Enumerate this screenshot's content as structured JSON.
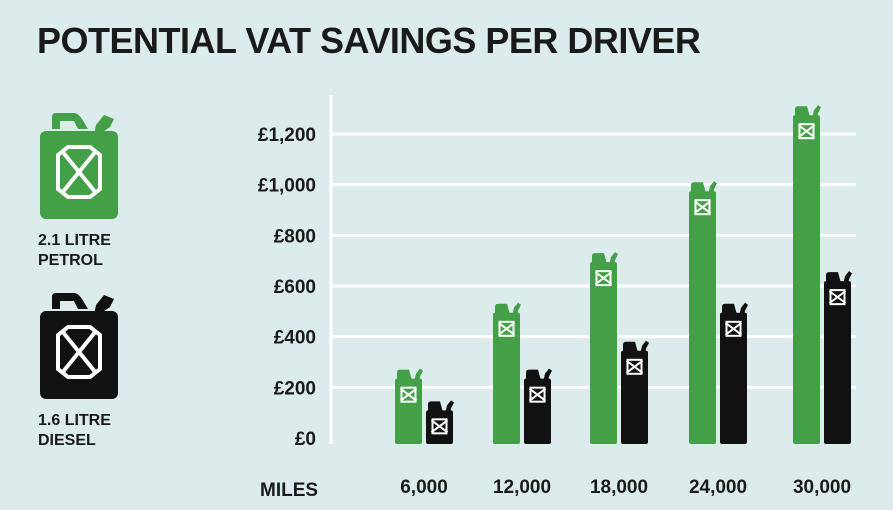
{
  "title": "POTENTIAL VAT SAVINGS PER DRIVER",
  "legend": [
    {
      "label_line1": "2.1 LITRE",
      "label_line2": "PETROL",
      "color": "#43a047",
      "icon": "jerry-can-icon"
    },
    {
      "label_line1": "1.6 LITRE",
      "label_line2": "DIESEL",
      "color": "#111111",
      "icon": "jerry-can-icon"
    }
  ],
  "chart_data": {
    "type": "bar",
    "xlabel": "MILES",
    "ylabel": "",
    "categories": [
      "6,000",
      "12,000",
      "18,000",
      "24,000",
      "30,000"
    ],
    "series": [
      {
        "name": "2.1 LITRE PETROL",
        "color": "#43a047",
        "values": [
          250,
          510,
          710,
          990,
          1290
        ]
      },
      {
        "name": "1.6 LITRE DIESEL",
        "color": "#111111",
        "values": [
          125,
          250,
          360,
          510,
          635
        ]
      }
    ],
    "ylim": [
      0,
      1200
    ],
    "yticks": [
      0,
      200,
      400,
      600,
      800,
      1000,
      1200
    ],
    "ytick_labels": [
      "£0",
      "£200",
      "£400",
      "£600",
      "£800",
      "£1,000",
      "£1,200"
    ],
    "grid": true,
    "bar_style": "jerry-can"
  }
}
